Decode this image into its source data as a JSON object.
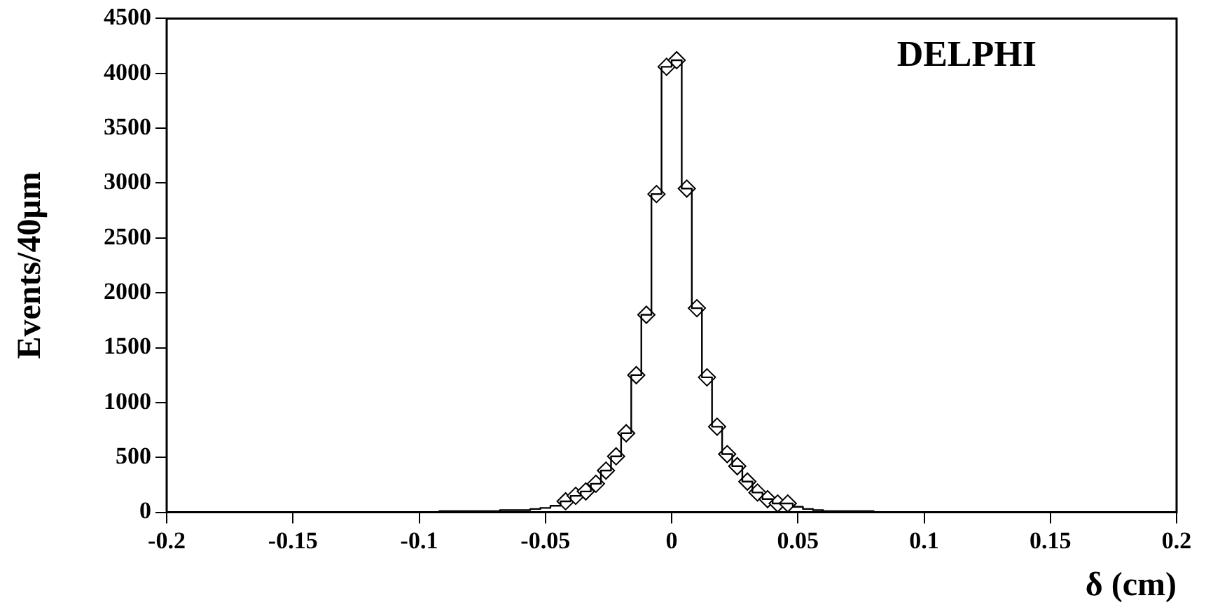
{
  "chart_data": {
    "type": "histogram",
    "xlabel": "δ (cm)",
    "ylabel": "Events/40μm",
    "annotations": [
      "DELPHI"
    ],
    "color": "#000000",
    "marker": "diamond",
    "grid": false,
    "legend": false,
    "bins": [
      -0.2,
      -0.196,
      -0.192,
      -0.188,
      -0.184,
      -0.18,
      -0.176,
      -0.172,
      -0.168,
      -0.164,
      -0.16,
      -0.156,
      -0.152,
      -0.148,
      -0.144,
      -0.14,
      -0.136,
      -0.132,
      -0.128,
      -0.124,
      -0.12,
      -0.116,
      -0.112,
      -0.108,
      -0.104,
      -0.1,
      -0.096,
      -0.092,
      -0.088,
      -0.084,
      -0.08,
      -0.076,
      -0.072,
      -0.068,
      -0.064,
      -0.06,
      -0.056,
      -0.052,
      -0.048,
      -0.044,
      -0.04,
      -0.036,
      -0.032,
      -0.028,
      -0.024,
      -0.02,
      -0.016,
      -0.012,
      -0.008,
      -0.004,
      0,
      0.004,
      0.008,
      0.012,
      0.016,
      0.02,
      0.024,
      0.028,
      0.032,
      0.036,
      0.04,
      0.044,
      0.048,
      0.052,
      0.056,
      0.06,
      0.064,
      0.068,
      0.072,
      0.076,
      0.08,
      0.084,
      0.088,
      0.092,
      0.096,
      0.1,
      0.104,
      0.108,
      0.112,
      0.116,
      0.12,
      0.124,
      0.128,
      0.132,
      0.136,
      0.14,
      0.144,
      0.148,
      0.152,
      0.156,
      0.16,
      0.164,
      0.168,
      0.172,
      0.176,
      0.18,
      0.184,
      0.188,
      0.192,
      0.196,
      0.2
    ],
    "values": [
      0,
      0,
      0,
      0,
      0,
      0,
      0,
      0,
      0,
      0,
      0,
      0,
      0,
      0,
      0,
      0,
      0,
      0,
      0,
      0,
      0,
      0,
      0,
      0,
      0,
      0,
      0,
      10,
      10,
      10,
      10,
      10,
      10,
      20,
      20,
      20,
      30,
      40,
      60,
      100,
      150,
      190,
      260,
      380,
      510,
      720,
      1250,
      1800,
      2900,
      4060,
      4120,
      2950,
      1860,
      1230,
      780,
      530,
      420,
      280,
      180,
      120,
      80,
      80,
      50,
      30,
      20,
      10,
      10,
      10,
      10,
      10,
      0,
      0,
      0,
      0,
      0,
      0,
      0,
      0,
      0,
      0,
      0,
      0,
      0,
      0,
      0,
      0,
      0,
      0,
      0,
      0,
      0,
      0,
      0,
      0,
      0,
      0,
      0,
      0,
      0,
      0
    ],
    "series": [
      {
        "type": "scatter",
        "color": "#000000",
        "x": [
          -0.042,
          -0.038,
          -0.034,
          -0.03,
          -0.026,
          -0.022,
          -0.018,
          -0.014,
          -0.01,
          -0.006,
          -0.002,
          0.002,
          0.006,
          0.01,
          0.014,
          0.018,
          0.022,
          0.026,
          0.03,
          0.034,
          0.038,
          0.042,
          0.046
        ],
        "values": [
          100,
          150,
          190,
          260,
          380,
          510,
          720,
          1250,
          1800,
          2900,
          4060,
          4120,
          2950,
          1860,
          1230,
          780,
          530,
          420,
          280,
          180,
          120,
          80,
          80
        ]
      }
    ],
    "xlim": [
      -0.2,
      0.2
    ],
    "xticks": [
      -0.2,
      -0.15,
      -0.1,
      -0.05,
      0,
      0.05,
      0.1,
      0.15,
      0.2
    ],
    "ylim": [
      0,
      4500
    ],
    "yticks": [
      0,
      500,
      1000,
      1500,
      2000,
      2500,
      3000,
      3500,
      4000,
      4500
    ]
  }
}
